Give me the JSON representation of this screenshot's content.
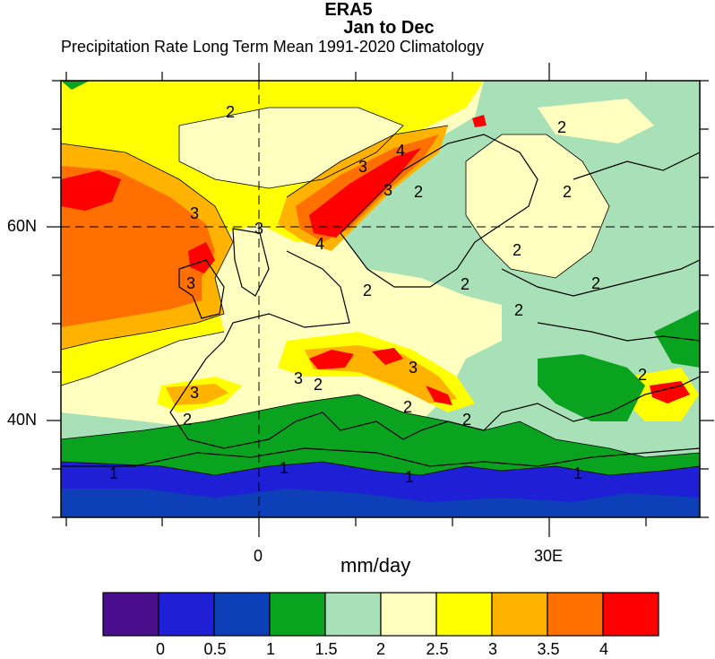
{
  "title": "ERA5",
  "subtitle": "Jan to Dec",
  "description": "Precipitation Rate Long Term Mean 1991-2020 Climatology",
  "units": "mm/day",
  "lat_labels": [
    "60N",
    "40N"
  ],
  "lon_labels": [
    "0",
    "30E"
  ],
  "contour_labels": [
    "2",
    "2",
    "2",
    "2",
    "2",
    "2",
    "2",
    "2",
    "2",
    "2",
    "2",
    "3",
    "3",
    "3",
    "3",
    "3",
    "3",
    "3",
    "3",
    "4",
    "4",
    "1",
    "1",
    "1",
    "1",
    "2",
    "2",
    "2"
  ],
  "colorbar": {
    "levels": [
      "0",
      "0.5",
      "1",
      "1.5",
      "2",
      "2.5",
      "3",
      "3.5",
      "4"
    ],
    "colors": [
      "#4a0d8c",
      "#1f1fd6",
      "#0d3fb8",
      "#0aa31f",
      "#a8e0b8",
      "#ffffbf",
      "#ffff00",
      "#ffb300",
      "#ff7000",
      "#ff0000"
    ]
  }
}
